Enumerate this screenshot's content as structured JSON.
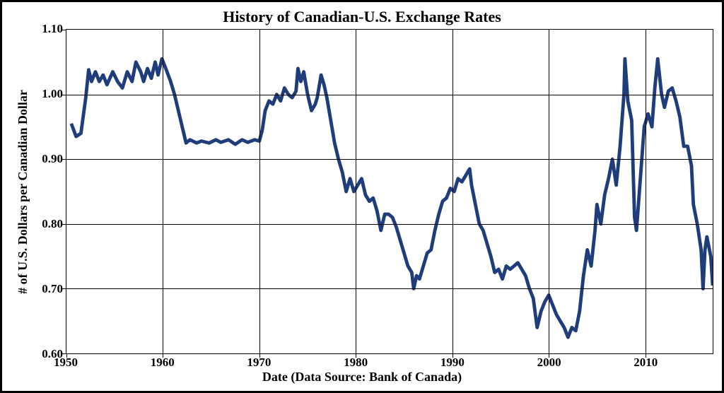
{
  "chart": {
    "type": "line",
    "title": "History of Canadian-U.S. Exchange Rates",
    "title_fontsize": 22,
    "xlabel": "Date (Data Source: Bank of Canada)",
    "ylabel": "# of U.S. Dollars per Canadian Dollar",
    "axis_label_fontsize": 18,
    "tick_fontsize": 17,
    "xlim": [
      1950,
      2017
    ],
    "ylim": [
      0.6,
      1.1
    ],
    "xticks": [
      1950,
      1960,
      1970,
      1980,
      1990,
      2000,
      2010
    ],
    "yticks": [
      0.6,
      0.7,
      0.8,
      0.9,
      1.0,
      1.1
    ],
    "ytick_labels": [
      "0.60",
      "0.70",
      "0.80",
      "0.90",
      "1.00",
      "1.10"
    ],
    "line_color": "#1f3d7a",
    "line_width": 2.2,
    "grid_color": "#000000",
    "background_color": "#ffffff",
    "border_color": "#000000",
    "series": [
      [
        1950.5,
        0.955
      ],
      [
        1951.0,
        0.935
      ],
      [
        1951.5,
        0.94
      ],
      [
        1952.0,
        0.995
      ],
      [
        1952.3,
        1.038
      ],
      [
        1952.6,
        1.02
      ],
      [
        1953.0,
        1.035
      ],
      [
        1953.4,
        1.02
      ],
      [
        1953.8,
        1.03
      ],
      [
        1954.2,
        1.015
      ],
      [
        1954.8,
        1.035
      ],
      [
        1955.3,
        1.02
      ],
      [
        1955.8,
        1.01
      ],
      [
        1956.3,
        1.035
      ],
      [
        1956.8,
        1.02
      ],
      [
        1957.2,
        1.05
      ],
      [
        1957.7,
        1.035
      ],
      [
        1958.0,
        1.02
      ],
      [
        1958.4,
        1.04
      ],
      [
        1958.8,
        1.025
      ],
      [
        1959.2,
        1.05
      ],
      [
        1959.5,
        1.03
      ],
      [
        1959.9,
        1.055
      ],
      [
        1960.3,
        1.04
      ],
      [
        1960.8,
        1.02
      ],
      [
        1961.2,
        1.0
      ],
      [
        1961.6,
        0.975
      ],
      [
        1962.0,
        0.95
      ],
      [
        1962.4,
        0.925
      ],
      [
        1962.8,
        0.93
      ],
      [
        1963.5,
        0.925
      ],
      [
        1964.0,
        0.928
      ],
      [
        1964.8,
        0.925
      ],
      [
        1965.5,
        0.93
      ],
      [
        1966.0,
        0.926
      ],
      [
        1966.8,
        0.93
      ],
      [
        1967.5,
        0.923
      ],
      [
        1968.2,
        0.93
      ],
      [
        1968.8,
        0.926
      ],
      [
        1969.5,
        0.93
      ],
      [
        1970.0,
        0.928
      ],
      [
        1970.3,
        0.945
      ],
      [
        1970.6,
        0.975
      ],
      [
        1971.0,
        0.99
      ],
      [
        1971.4,
        0.985
      ],
      [
        1971.8,
        1.0
      ],
      [
        1972.2,
        0.99
      ],
      [
        1972.6,
        1.01
      ],
      [
        1973.0,
        1.0
      ],
      [
        1973.4,
        0.995
      ],
      [
        1973.8,
        1.005
      ],
      [
        1974.0,
        1.04
      ],
      [
        1974.3,
        1.02
      ],
      [
        1974.6,
        1.035
      ],
      [
        1975.0,
        1.0
      ],
      [
        1975.4,
        0.975
      ],
      [
        1975.8,
        0.985
      ],
      [
        1976.0,
        0.995
      ],
      [
        1976.4,
        1.03
      ],
      [
        1976.7,
        1.015
      ],
      [
        1977.0,
        0.995
      ],
      [
        1977.4,
        0.96
      ],
      [
        1977.8,
        0.925
      ],
      [
        1978.2,
        0.9
      ],
      [
        1978.6,
        0.88
      ],
      [
        1979.0,
        0.85
      ],
      [
        1979.4,
        0.87
      ],
      [
        1979.8,
        0.85
      ],
      [
        1980.2,
        0.86
      ],
      [
        1980.6,
        0.87
      ],
      [
        1981.0,
        0.845
      ],
      [
        1981.4,
        0.835
      ],
      [
        1981.8,
        0.84
      ],
      [
        1982.2,
        0.82
      ],
      [
        1982.6,
        0.79
      ],
      [
        1983.0,
        0.815
      ],
      [
        1983.4,
        0.815
      ],
      [
        1983.8,
        0.81
      ],
      [
        1984.2,
        0.795
      ],
      [
        1984.6,
        0.775
      ],
      [
        1985.0,
        0.755
      ],
      [
        1985.4,
        0.735
      ],
      [
        1985.8,
        0.725
      ],
      [
        1986.0,
        0.7
      ],
      [
        1986.3,
        0.72
      ],
      [
        1986.6,
        0.715
      ],
      [
        1987.0,
        0.735
      ],
      [
        1987.4,
        0.755
      ],
      [
        1987.8,
        0.76
      ],
      [
        1988.2,
        0.79
      ],
      [
        1988.6,
        0.815
      ],
      [
        1989.0,
        0.835
      ],
      [
        1989.4,
        0.84
      ],
      [
        1989.8,
        0.855
      ],
      [
        1990.2,
        0.85
      ],
      [
        1990.6,
        0.87
      ],
      [
        1991.0,
        0.865
      ],
      [
        1991.4,
        0.875
      ],
      [
        1991.8,
        0.885
      ],
      [
        1992.0,
        0.86
      ],
      [
        1992.4,
        0.83
      ],
      [
        1992.8,
        0.8
      ],
      [
        1993.2,
        0.79
      ],
      [
        1993.6,
        0.77
      ],
      [
        1994.0,
        0.75
      ],
      [
        1994.4,
        0.725
      ],
      [
        1994.8,
        0.73
      ],
      [
        1995.2,
        0.715
      ],
      [
        1995.6,
        0.735
      ],
      [
        1996.0,
        0.73
      ],
      [
        1996.4,
        0.735
      ],
      [
        1996.8,
        0.74
      ],
      [
        1997.2,
        0.73
      ],
      [
        1997.6,
        0.72
      ],
      [
        1998.0,
        0.7
      ],
      [
        1998.4,
        0.685
      ],
      [
        1998.8,
        0.64
      ],
      [
        1999.2,
        0.665
      ],
      [
        1999.6,
        0.68
      ],
      [
        2000.0,
        0.69
      ],
      [
        2000.4,
        0.675
      ],
      [
        2000.8,
        0.66
      ],
      [
        2001.2,
        0.65
      ],
      [
        2001.6,
        0.64
      ],
      [
        2002.0,
        0.625
      ],
      [
        2002.4,
        0.64
      ],
      [
        2002.8,
        0.635
      ],
      [
        2003.2,
        0.665
      ],
      [
        2003.6,
        0.72
      ],
      [
        2004.0,
        0.76
      ],
      [
        2004.4,
        0.735
      ],
      [
        2004.8,
        0.79
      ],
      [
        2005.0,
        0.83
      ],
      [
        2005.4,
        0.8
      ],
      [
        2005.8,
        0.845
      ],
      [
        2006.2,
        0.87
      ],
      [
        2006.6,
        0.9
      ],
      [
        2007.0,
        0.86
      ],
      [
        2007.4,
        0.92
      ],
      [
        2007.8,
        1.0
      ],
      [
        2007.9,
        1.055
      ],
      [
        2008.2,
        0.99
      ],
      [
        2008.6,
        0.96
      ],
      [
        2008.9,
        0.81
      ],
      [
        2009.1,
        0.79
      ],
      [
        2009.5,
        0.87
      ],
      [
        2009.9,
        0.95
      ],
      [
        2010.3,
        0.97
      ],
      [
        2010.7,
        0.95
      ],
      [
        2011.0,
        1.01
      ],
      [
        2011.3,
        1.055
      ],
      [
        2011.7,
        1.0
      ],
      [
        2012.0,
        0.98
      ],
      [
        2012.4,
        1.005
      ],
      [
        2012.8,
        1.01
      ],
      [
        2013.2,
        0.99
      ],
      [
        2013.6,
        0.965
      ],
      [
        2014.0,
        0.92
      ],
      [
        2014.4,
        0.92
      ],
      [
        2014.8,
        0.89
      ],
      [
        2015.0,
        0.83
      ],
      [
        2015.4,
        0.8
      ],
      [
        2015.8,
        0.76
      ],
      [
        2016.0,
        0.7
      ],
      [
        2016.2,
        0.76
      ],
      [
        2016.4,
        0.78
      ],
      [
        2016.8,
        0.75
      ],
      [
        2017.0,
        0.705
      ]
    ]
  }
}
